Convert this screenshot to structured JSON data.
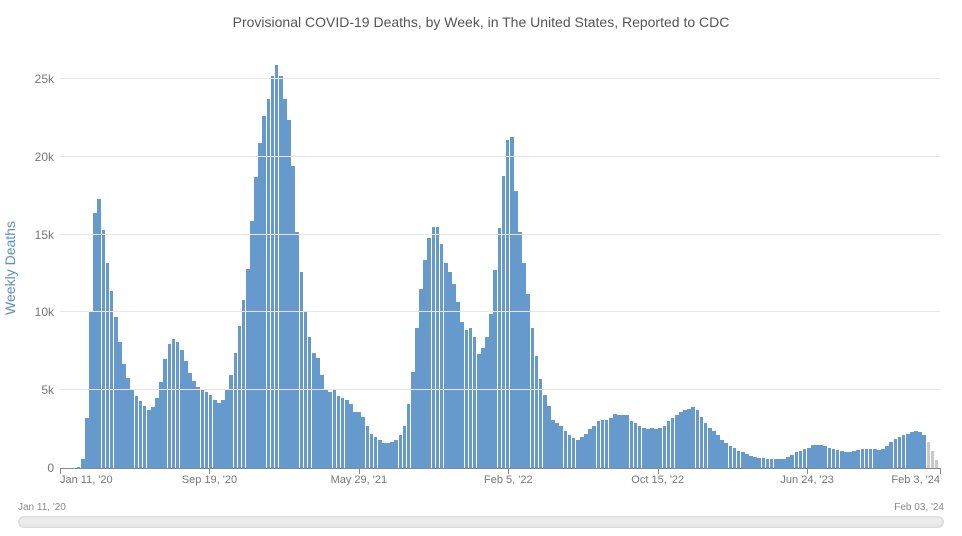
{
  "chart": {
    "type": "bar",
    "title": "Provisional COVID-19 Deaths, by Week, in The United States, Reported to CDC",
    "title_fontsize": 14,
    "title_color": "#555555",
    "y_axis_label": "Weekly Deaths",
    "y_axis_label_color": "#5b8fbf",
    "ylim": [
      0,
      27000
    ],
    "y_ticks": [
      {
        "value": 0,
        "label": "0"
      },
      {
        "value": 5000,
        "label": "5k"
      },
      {
        "value": 10000,
        "label": "10k"
      },
      {
        "value": 15000,
        "label": "15k"
      },
      {
        "value": 20000,
        "label": "20k"
      },
      {
        "value": 25000,
        "label": "25k"
      }
    ],
    "x_ticks": [
      {
        "index": 0,
        "label": "Jan 11, '20",
        "edge": "left"
      },
      {
        "index": 36,
        "label": "Sep 19, '20"
      },
      {
        "index": 72,
        "label": "May 29, '21"
      },
      {
        "index": 108,
        "label": "Feb 5, '22"
      },
      {
        "index": 144,
        "label": "Oct 15, '22"
      },
      {
        "index": 180,
        "label": "Jun 24, '23"
      },
      {
        "index": 212,
        "label": "Feb 3, '24",
        "edge": "right"
      }
    ],
    "bar_color": "#6699cc",
    "bar_color_recent": "#c9c9c9",
    "recent_count": 3,
    "grid_color": "#e6e6e6",
    "axis_color": "#888888",
    "background_color": "#ffffff",
    "values": [
      2,
      3,
      6,
      17,
      60,
      580,
      3200,
      10100,
      16400,
      17300,
      15300,
      13200,
      11400,
      9700,
      8100,
      6700,
      5800,
      5100,
      4600,
      4300,
      4000,
      3700,
      3900,
      4500,
      5500,
      7000,
      8000,
      8300,
      8100,
      7600,
      6900,
      6100,
      5600,
      5200,
      5000,
      4900,
      4700,
      4400,
      4200,
      4400,
      5000,
      6000,
      7400,
      9100,
      10800,
      12800,
      15900,
      18700,
      20900,
      22600,
      23700,
      25200,
      25900,
      25200,
      23700,
      22400,
      19400,
      15200,
      12600,
      10100,
      8400,
      7400,
      7100,
      6000,
      5100,
      4900,
      5000,
      4600,
      4500,
      4400,
      4100,
      3600,
      3600,
      3300,
      2700,
      2200,
      2000,
      1800,
      1600,
      1600,
      1700,
      1800,
      2100,
      2700,
      4100,
      6200,
      9000,
      11500,
      13400,
      14800,
      15500,
      15500,
      14400,
      13200,
      12600,
      11800,
      10700,
      9400,
      8900,
      9000,
      8400,
      7300,
      7700,
      8400,
      9900,
      12700,
      15400,
      18800,
      21100,
      21300,
      17800,
      15200,
      13200,
      11200,
      9000,
      7200,
      5700,
      4700,
      4000,
      3100,
      2900,
      2700,
      2400,
      2100,
      1900,
      1800,
      2000,
      2200,
      2500,
      2700,
      3000,
      3100,
      3100,
      3200,
      3500,
      3400,
      3400,
      3400,
      3000,
      2900,
      2700,
      2600,
      2500,
      2600,
      2500,
      2600,
      2700,
      3000,
      3200,
      3400,
      3600,
      3700,
      3800,
      3900,
      3700,
      3300,
      2900,
      2600,
      2400,
      2100,
      1800,
      1600,
      1400,
      1300,
      1100,
      1000,
      900,
      800,
      700,
      650,
      620,
      600,
      580,
      560,
      560,
      600,
      700,
      850,
      1000,
      1100,
      1200,
      1300,
      1450,
      1500,
      1500,
      1400,
      1300,
      1200,
      1150,
      1100,
      1050,
      1050,
      1100,
      1150,
      1200,
      1250,
      1250,
      1200,
      1150,
      1200,
      1400,
      1650,
      1850,
      2000,
      2100,
      2200,
      2300,
      2400,
      2300,
      2100,
      1700,
      1100,
      500
    ]
  },
  "range_slider": {
    "min_label": "Jan 11, '20",
    "max_label": "Feb 03, '24"
  }
}
